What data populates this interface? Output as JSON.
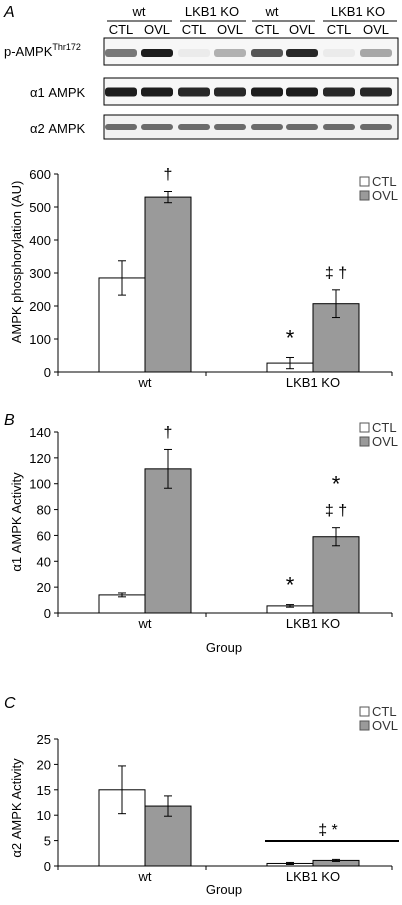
{
  "blot": {
    "panel_letter": "A",
    "groups": [
      {
        "label": "wt",
        "lanes": [
          "CTL",
          "OVL"
        ]
      },
      {
        "label": "LKB1 KO",
        "lanes": [
          "CTL",
          "OVL"
        ]
      },
      {
        "label": "wt",
        "lanes": [
          "CTL",
          "OVL"
        ]
      },
      {
        "label": "LKB1 KO",
        "lanes": [
          "CTL",
          "OVL"
        ]
      }
    ],
    "rows": [
      {
        "label": "p-AMPK",
        "superscript": "Thr172"
      },
      {
        "label": "α1 AMPK",
        "superscript": ""
      },
      {
        "label": "α2 AMPK",
        "superscript": ""
      }
    ],
    "band_intensity": [
      [
        0.55,
        0.95,
        0.05,
        0.3,
        0.7,
        0.9,
        0.05,
        0.35
      ],
      [
        0.95,
        0.95,
        0.9,
        0.9,
        0.95,
        0.95,
        0.9,
        0.9
      ],
      [
        0.6,
        0.6,
        0.6,
        0.6,
        0.6,
        0.6,
        0.6,
        0.6
      ]
    ]
  },
  "colors": {
    "ctl": "#ffffff",
    "ovl": "#9a9a9a",
    "axis": "#000000",
    "band": "#111111"
  },
  "chart_data": [
    {
      "type": "bar",
      "panel_letter": "",
      "categories": [
        "wt",
        "LKB1 KO"
      ],
      "series": [
        {
          "name": "CTL",
          "values": [
            285,
            27
          ],
          "errors": [
            52,
            17
          ]
        },
        {
          "name": "OVL",
          "values": [
            530,
            207
          ],
          "errors": [
            17,
            42
          ]
        }
      ],
      "ylabel": "AMPK phosphorylation (AU)",
      "xlabel": "",
      "ylim": [
        0,
        600
      ],
      "yticks": [
        "0",
        "100",
        "200",
        "300",
        "400",
        "500",
        "600"
      ],
      "legend": "top-right",
      "annotations": [
        {
          "cat": 0,
          "series": 1,
          "text": "†"
        },
        {
          "cat": 1,
          "series": 0,
          "text": "*"
        },
        {
          "cat": 1,
          "series": 1,
          "text": "‡ †"
        }
      ]
    },
    {
      "type": "bar",
      "panel_letter": "B",
      "categories": [
        "wt",
        "LKB1 KO"
      ],
      "series": [
        {
          "name": "CTL",
          "values": [
            14,
            5.5
          ],
          "errors": [
            1.5,
            1
          ]
        },
        {
          "name": "OVL",
          "values": [
            111.5,
            59
          ],
          "errors": [
            15,
            7
          ]
        }
      ],
      "ylabel": "α1 AMPK Activity",
      "xlabel": "Group",
      "ylim": [
        0,
        140
      ],
      "yticks": [
        "0",
        "20",
        "40",
        "60",
        "80",
        "100",
        "120",
        "140"
      ],
      "legend": "top-right",
      "annotations": [
        {
          "cat": 0,
          "series": 1,
          "text": "†"
        },
        {
          "cat": 1,
          "series": 0,
          "text": "*"
        },
        {
          "cat": 1,
          "series": 1,
          "text": "‡ †"
        },
        {
          "cat": 1,
          "series": 1,
          "text": "*"
        }
      ]
    },
    {
      "type": "bar",
      "panel_letter": "C",
      "categories": [
        "wt",
        "LKB1 KO"
      ],
      "series": [
        {
          "name": "CTL",
          "values": [
            15,
            0.5
          ],
          "errors": [
            4.7,
            0.2
          ]
        },
        {
          "name": "OVL",
          "values": [
            11.8,
            1.1
          ],
          "errors": [
            2,
            0.2
          ]
        }
      ],
      "ylabel": "α2 AMPK Activity",
      "xlabel": "Group",
      "ylim": [
        0,
        25
      ],
      "yticks": [
        "0",
        "5",
        "10",
        "15",
        "20",
        "25"
      ],
      "legend": "top-right",
      "annotations": [
        {
          "cat": 1,
          "series": -1,
          "text": "‡     *"
        }
      ]
    }
  ]
}
